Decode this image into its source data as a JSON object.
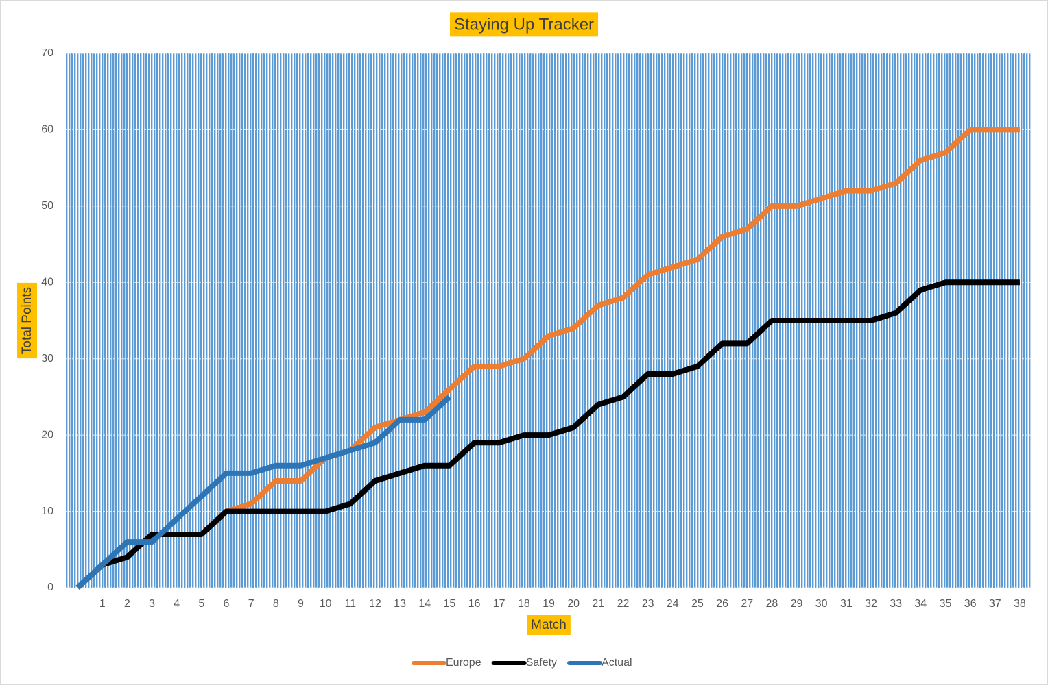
{
  "chart_data": {
    "type": "line",
    "title": "Staying Up Tracker",
    "x_label": "Match",
    "y_label": "Total Points",
    "categories": [
      null,
      "1",
      "2",
      "3",
      "4",
      "5",
      "6",
      "7",
      "8",
      "9",
      "10",
      "11",
      "12",
      "13",
      "14",
      "15",
      "16",
      "17",
      "18",
      "19",
      "20",
      "21",
      "22",
      "23",
      "24",
      "25",
      "26",
      "27",
      "28",
      "29",
      "30",
      "31",
      "32",
      "33",
      "34",
      "35",
      "36",
      "37",
      "38"
    ],
    "series": [
      {
        "name": "Europe",
        "color": "#ed7d31",
        "values": [
          0,
          3,
          4,
          7,
          7,
          7,
          10,
          11,
          14,
          14,
          17,
          18,
          21,
          22,
          23,
          26,
          29,
          29,
          30,
          33,
          34,
          37,
          38,
          41,
          42,
          43,
          46,
          47,
          50,
          50,
          51,
          52,
          52,
          53,
          56,
          57,
          60,
          60,
          60
        ]
      },
      {
        "name": "Safety",
        "color": "#000000",
        "values": [
          0,
          3,
          4,
          7,
          7,
          7,
          10,
          10,
          10,
          10,
          10,
          11,
          14,
          15,
          16,
          16,
          19,
          19,
          20,
          20,
          21,
          24,
          25,
          28,
          28,
          29,
          32,
          32,
          35,
          35,
          35,
          35,
          35,
          36,
          39,
          40,
          40,
          40,
          40
        ]
      },
      {
        "name": "Actual",
        "color": "#2e75b6",
        "values": [
          0,
          3,
          6,
          6,
          9,
          12,
          15,
          15,
          16,
          16,
          17,
          18,
          19,
          22,
          22,
          25,
          null,
          null,
          null,
          null,
          null,
          null,
          null,
          null,
          null,
          null,
          null,
          null,
          null,
          null,
          null,
          null,
          null,
          null,
          null,
          null,
          null,
          null,
          null
        ]
      }
    ],
    "ylim": [
      0,
      70
    ],
    "yticks": [
      0,
      10,
      20,
      30,
      40,
      50,
      60,
      70
    ],
    "grid": true,
    "legend": "bottom"
  }
}
